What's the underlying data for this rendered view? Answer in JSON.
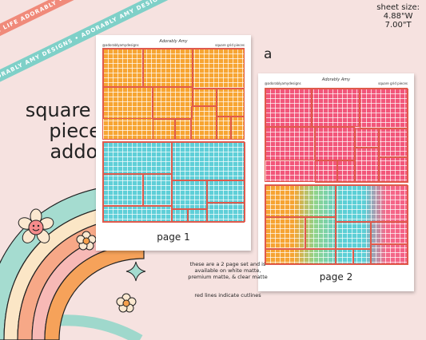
{
  "ribbons": {
    "top": "PLAN LIFE ADORABLY • PLAN LIFE ADORABLY •",
    "bottom": "ADORABLY AMY DESIGNS • ADORABLY AMY DESIGNS •"
  },
  "sheet_size": {
    "label": "sheet size:",
    "width": "4.88\"W",
    "height": "7.00\"T"
  },
  "title": {
    "line1": "square grid",
    "line2": "pieces",
    "line3": "addon"
  },
  "option_letter": "a",
  "page1": {
    "header_left": "@adorablyamydesigns",
    "header_brand": "Adorably Amy",
    "header_right": "square grid pieces",
    "label": "page 1"
  },
  "page2": {
    "header_left": "@adorablyamydesigns",
    "header_brand": "Adorably Amy",
    "header_right": "square grid pieces",
    "label": "page 2"
  },
  "note": {
    "set_info": "these are a 2 page set and is available on white matte, premium matte, & clear matte",
    "cutlines": "red lines indicate cutlines"
  },
  "colors": {
    "background": "#f6e2e0",
    "orange": "#f7a532",
    "teal": "#5fcfd8",
    "pink": "#f2567a",
    "cutline": "#e05a4c"
  }
}
